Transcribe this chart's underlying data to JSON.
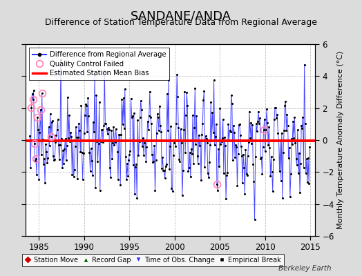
{
  "title": "SANDANE/ANDA",
  "subtitle": "Difference of Station Temperature Data from Regional Average",
  "ylabel_right": "Monthly Temperature Anomaly Difference (°C)",
  "xlim": [
    1983.5,
    2015.5
  ],
  "ylim": [
    -6,
    6
  ],
  "yticks": [
    -6,
    -4,
    -2,
    0,
    2,
    4,
    6
  ],
  "xticks": [
    1985,
    1990,
    1995,
    2000,
    2005,
    2010,
    2015
  ],
  "bias_value": -0.05,
  "line_color": "#3333FF",
  "line_color_light": "#8888FF",
  "dot_color": "#000000",
  "bias_color": "#FF0000",
  "qc_color": "#FF88BB",
  "bg_color": "#DCDCDC",
  "plot_bg_color": "#FFFFFF",
  "grid_color": "#C0C0C0",
  "watermark": "Berkeley Earth",
  "seed": 17,
  "n_months": 372,
  "qc_indices": [
    2,
    4,
    6,
    8,
    10,
    14,
    16,
    28,
    248,
    310
  ],
  "title_fontsize": 13,
  "subtitle_fontsize": 9,
  "tick_fontsize": 8.5,
  "ylabel_fontsize": 8
}
